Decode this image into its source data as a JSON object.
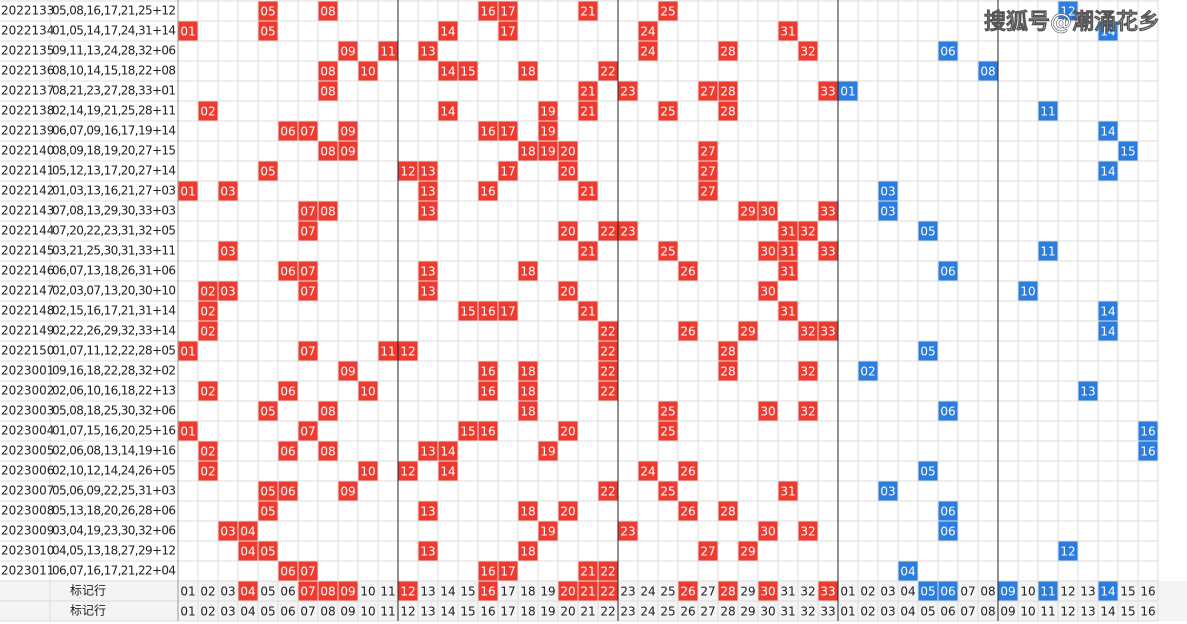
{
  "watermark": "搜狐号@潮涌花乡",
  "red_columns": [
    "01",
    "02",
    "03",
    "04",
    "05",
    "06",
    "07",
    "08",
    "09",
    "10",
    "11",
    "12",
    "13",
    "14",
    "15",
    "16",
    "17",
    "18",
    "19",
    "20",
    "21",
    "22",
    "23",
    "24",
    "25",
    "26",
    "27",
    "28",
    "29",
    "30",
    "31",
    "32",
    "33"
  ],
  "blue_columns": [
    "01",
    "02",
    "03",
    "04",
    "05",
    "06",
    "07",
    "08",
    "09",
    "10",
    "11",
    "12",
    "13",
    "14",
    "15",
    "16"
  ],
  "rows": [
    {
      "issue": "2022133",
      "draw": "05,08,16,17,21,25+12",
      "red": [
        "05",
        "08",
        "16",
        "17",
        "21",
        "25"
      ],
      "blue": "12"
    },
    {
      "issue": "2022134",
      "draw": "01,05,14,17,24,31+14",
      "red": [
        "01",
        "05",
        "14",
        "17",
        "24",
        "31"
      ],
      "blue": "14"
    },
    {
      "issue": "2022135",
      "draw": "09,11,13,24,28,32+06",
      "red": [
        "09",
        "11",
        "13",
        "24",
        "28",
        "32"
      ],
      "blue": "06"
    },
    {
      "issue": "2022136",
      "draw": "08,10,14,15,18,22+08",
      "red": [
        "08",
        "10",
        "14",
        "15",
        "18",
        "22"
      ],
      "blue": "08"
    },
    {
      "issue": "2022137",
      "draw": "08,21,23,27,28,33+01",
      "red": [
        "08",
        "21",
        "23",
        "27",
        "28",
        "33"
      ],
      "blue": "01"
    },
    {
      "issue": "2022138",
      "draw": "02,14,19,21,25,28+11",
      "red": [
        "02",
        "14",
        "19",
        "21",
        "25",
        "28"
      ],
      "blue": "11"
    },
    {
      "issue": "2022139",
      "draw": "06,07,09,16,17,19+14",
      "red": [
        "06",
        "07",
        "09",
        "16",
        "17",
        "19"
      ],
      "blue": "14"
    },
    {
      "issue": "2022140",
      "draw": "08,09,18,19,20,27+15",
      "red": [
        "08",
        "09",
        "18",
        "19",
        "20",
        "27"
      ],
      "blue": "15"
    },
    {
      "issue": "2022141",
      "draw": "05,12,13,17,20,27+14",
      "red": [
        "05",
        "12",
        "13",
        "17",
        "20",
        "27"
      ],
      "blue": "14"
    },
    {
      "issue": "2022142",
      "draw": "01,03,13,16,21,27+03",
      "red": [
        "01",
        "03",
        "13",
        "16",
        "21",
        "27"
      ],
      "blue": "03"
    },
    {
      "issue": "2022143",
      "draw": "07,08,13,29,30,33+03",
      "red": [
        "07",
        "08",
        "13",
        "29",
        "30",
        "33"
      ],
      "blue": "03"
    },
    {
      "issue": "2022144",
      "draw": "07,20,22,23,31,32+05",
      "red": [
        "07",
        "20",
        "22",
        "23",
        "31",
        "32"
      ],
      "blue": "05"
    },
    {
      "issue": "2022145",
      "draw": "03,21,25,30,31,33+11",
      "red": [
        "03",
        "21",
        "25",
        "30",
        "31",
        "33"
      ],
      "blue": "11"
    },
    {
      "issue": "2022146",
      "draw": "06,07,13,18,26,31+06",
      "red": [
        "06",
        "07",
        "13",
        "18",
        "26",
        "31"
      ],
      "blue": "06"
    },
    {
      "issue": "2022147",
      "draw": "02,03,07,13,20,30+10",
      "red": [
        "02",
        "03",
        "07",
        "13",
        "20",
        "30"
      ],
      "blue": "10"
    },
    {
      "issue": "2022148",
      "draw": "02,15,16,17,21,31+14",
      "red": [
        "02",
        "15",
        "16",
        "17",
        "21",
        "31"
      ],
      "blue": "14"
    },
    {
      "issue": "2022149",
      "draw": "02,22,26,29,32,33+14",
      "red": [
        "02",
        "22",
        "26",
        "29",
        "32",
        "33"
      ],
      "blue": "14"
    },
    {
      "issue": "2022150",
      "draw": "01,07,11,12,22,28+05",
      "red": [
        "01",
        "07",
        "11",
        "12",
        "22",
        "28"
      ],
      "blue": "05"
    },
    {
      "issue": "2023001",
      "draw": "09,16,18,22,28,32+02",
      "red": [
        "09",
        "16",
        "18",
        "22",
        "28",
        "32"
      ],
      "blue": "02"
    },
    {
      "issue": "2023002",
      "draw": "02,06,10,16,18,22+13",
      "red": [
        "02",
        "06",
        "10",
        "16",
        "18",
        "22"
      ],
      "blue": "13"
    },
    {
      "issue": "2023003",
      "draw": "05,08,18,25,30,32+06",
      "red": [
        "05",
        "08",
        "18",
        "25",
        "30",
        "32"
      ],
      "blue": "06"
    },
    {
      "issue": "2023004",
      "draw": "01,07,15,16,20,25+16",
      "red": [
        "01",
        "07",
        "15",
        "16",
        "20",
        "25"
      ],
      "blue": "16"
    },
    {
      "issue": "2023005",
      "draw": "02,06,08,13,14,19+16",
      "red": [
        "02",
        "06",
        "08",
        "13",
        "14",
        "19"
      ],
      "blue": "16"
    },
    {
      "issue": "2023006",
      "draw": "02,10,12,14,24,26+05",
      "red": [
        "02",
        "10",
        "12",
        "14",
        "24",
        "26"
      ],
      "blue": "05"
    },
    {
      "issue": "2023007",
      "draw": "05,06,09,22,25,31+03",
      "red": [
        "05",
        "06",
        "09",
        "22",
        "25",
        "31"
      ],
      "blue": "03"
    },
    {
      "issue": "2023008",
      "draw": "05,13,18,20,26,28+06",
      "red": [
        "05",
        "13",
        "18",
        "20",
        "26",
        "28"
      ],
      "blue": "06"
    },
    {
      "issue": "2023009",
      "draw": "03,04,19,23,30,32+06",
      "red": [
        "03",
        "04",
        "19",
        "23",
        "30",
        "32"
      ],
      "blue": "06"
    },
    {
      "issue": "2023010",
      "draw": "04,05,13,18,27,29+12",
      "red": [
        "04",
        "05",
        "13",
        "18",
        "27",
        "29"
      ],
      "blue": "12"
    },
    {
      "issue": "2023011",
      "draw": "06,07,16,17,21,22+04",
      "red": [
        "06",
        "07",
        "16",
        "17",
        "21",
        "22"
      ],
      "blue": "04"
    }
  ],
  "marker_rows": [
    {
      "label": "标记行",
      "red_marked": [
        "04",
        "07",
        "08",
        "09",
        "12",
        "16",
        "20",
        "21",
        "22",
        "26",
        "28",
        "30",
        "33"
      ],
      "blue_marked": [
        "05",
        "06",
        "09",
        "11",
        "14"
      ]
    },
    {
      "label": "标记行",
      "red_marked": [],
      "blue_marked": []
    }
  ]
}
